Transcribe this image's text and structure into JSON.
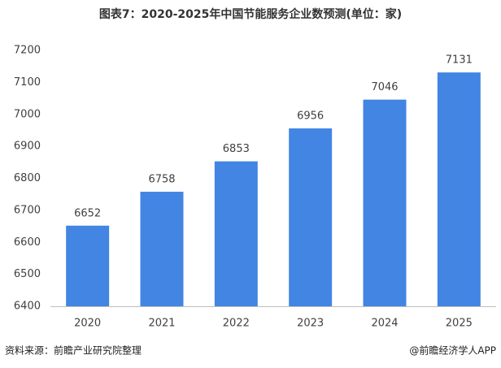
{
  "chart_data": {
    "type": "bar",
    "title": "图表7：2020-2025年中国节能服务企业数预测(单位：家)",
    "categories": [
      "2020",
      "2021",
      "2022",
      "2023",
      "2024",
      "2025"
    ],
    "values": [
      6652,
      6758,
      6853,
      6956,
      7046,
      7131
    ],
    "color": "#4285e3",
    "ylim": [
      6400,
      7200
    ],
    "yticks": [
      6400,
      6500,
      6600,
      6700,
      6800,
      6900,
      7000,
      7100,
      7200
    ],
    "grid": false,
    "source": "资料来源：前瞻产业研究院整理",
    "credit": "@前瞻经济学人APP"
  }
}
